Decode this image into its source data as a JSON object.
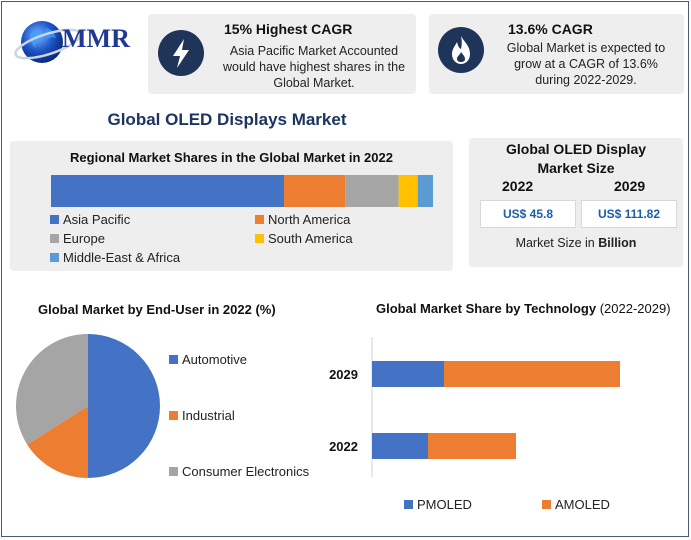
{
  "brand": {
    "logo_text": "MMR"
  },
  "kpi1": {
    "title": "15% Highest CAGR",
    "text": "Asia Pacific Market Accounted would have highest shares in the Global Market.",
    "icon": "lightning-icon"
  },
  "kpi2": {
    "title": "13.6% CAGR",
    "text": "Global Market is expected to grow at a CAGR of 13.6% during 2022-2029.",
    "icon": "flame-icon"
  },
  "main_title": "Global OLED Displays Market",
  "market_size": {
    "title_line1": "Global OLED Display",
    "title_line2": "Market Size",
    "year_a": "2022",
    "year_b": "2029",
    "value_a": "US$ 45.8",
    "value_b": "US$ 111.82",
    "footer_prefix": "Market Size in ",
    "footer_bold": "Billion"
  },
  "colors": {
    "blue": "#4472c4",
    "orange": "#ed7d31",
    "gray": "#a5a5a5",
    "yellow": "#ffc000",
    "lightblue": "#5b9bd5",
    "navy": "#1e3458"
  },
  "chart_data": [
    {
      "type": "bar",
      "orientation": "horizontal-stacked",
      "title": "Regional Market Shares in the Global Market in 2022",
      "series": [
        {
          "name": "Asia Pacific",
          "value": 61,
          "color": "#4472c4"
        },
        {
          "name": "North America",
          "value": 16,
          "color": "#ed7d31"
        },
        {
          "name": "Europe",
          "value": 14,
          "color": "#a5a5a5"
        },
        {
          "name": "South America",
          "value": 5,
          "color": "#ffc000"
        },
        {
          "name": "Middle-East & Africa",
          "value": 4,
          "color": "#5b9bd5"
        }
      ],
      "legend_columns": [
        [
          "Asia Pacific",
          "Europe",
          "Middle-East & Africa"
        ],
        [
          "North America",
          "South America"
        ]
      ]
    },
    {
      "type": "pie",
      "title": "Global Market by End-User in 2022 (%)",
      "slices": [
        {
          "name": "Automotive",
          "value": 50,
          "color": "#4472c4"
        },
        {
          "name": "Industrial",
          "value": 16,
          "color": "#ed7d31"
        },
        {
          "name": "Consumer Electronics",
          "value": 34,
          "color": "#a5a5a5"
        }
      ]
    },
    {
      "type": "bar",
      "orientation": "horizontal-stacked",
      "title_bold": "Global Market Share by Technology",
      "title_rest": " (2022-2029)",
      "categories": [
        "2029",
        "2022"
      ],
      "series": [
        {
          "name": "PMOLED",
          "values": [
            18,
            14
          ],
          "color": "#4472c4"
        },
        {
          "name": "AMOLED",
          "values": [
            44,
            22
          ],
          "color": "#ed7d31"
        }
      ],
      "xlim": [
        0,
        70
      ]
    }
  ]
}
